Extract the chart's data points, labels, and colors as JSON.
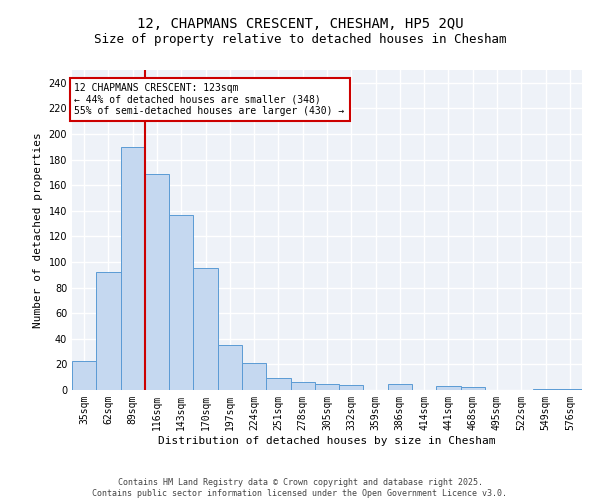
{
  "title_line1": "12, CHAPMANS CRESCENT, CHESHAM, HP5 2QU",
  "title_line2": "Size of property relative to detached houses in Chesham",
  "xlabel": "Distribution of detached houses by size in Chesham",
  "ylabel": "Number of detached properties",
  "categories": [
    "35sqm",
    "62sqm",
    "89sqm",
    "116sqm",
    "143sqm",
    "170sqm",
    "197sqm",
    "224sqm",
    "251sqm",
    "278sqm",
    "305sqm",
    "332sqm",
    "359sqm",
    "386sqm",
    "414sqm",
    "441sqm",
    "468sqm",
    "495sqm",
    "522sqm",
    "549sqm",
    "576sqm"
  ],
  "values": [
    23,
    92,
    190,
    169,
    137,
    95,
    35,
    21,
    9,
    6,
    5,
    4,
    0,
    5,
    0,
    3,
    2,
    0,
    0,
    1,
    1
  ],
  "bar_color": "#c5d8f0",
  "bar_edge_color": "#5b9bd5",
  "vline_x": 2.5,
  "vline_color": "#cc0000",
  "annotation_line1": "12 CHAPMANS CRESCENT: 123sqm",
  "annotation_line2": "← 44% of detached houses are smaller (348)",
  "annotation_line3": "55% of semi-detached houses are larger (430) →",
  "ylim": [
    0,
    250
  ],
  "yticks": [
    0,
    20,
    40,
    60,
    80,
    100,
    120,
    140,
    160,
    180,
    200,
    220,
    240
  ],
  "bg_color": "#eef2f8",
  "grid_color": "#ffffff",
  "footer_text": "Contains HM Land Registry data © Crown copyright and database right 2025.\nContains public sector information licensed under the Open Government Licence v3.0.",
  "title_fontsize": 10,
  "subtitle_fontsize": 9,
  "axis_label_fontsize": 8,
  "tick_fontsize": 7,
  "annotation_fontsize": 7,
  "footer_fontsize": 6
}
